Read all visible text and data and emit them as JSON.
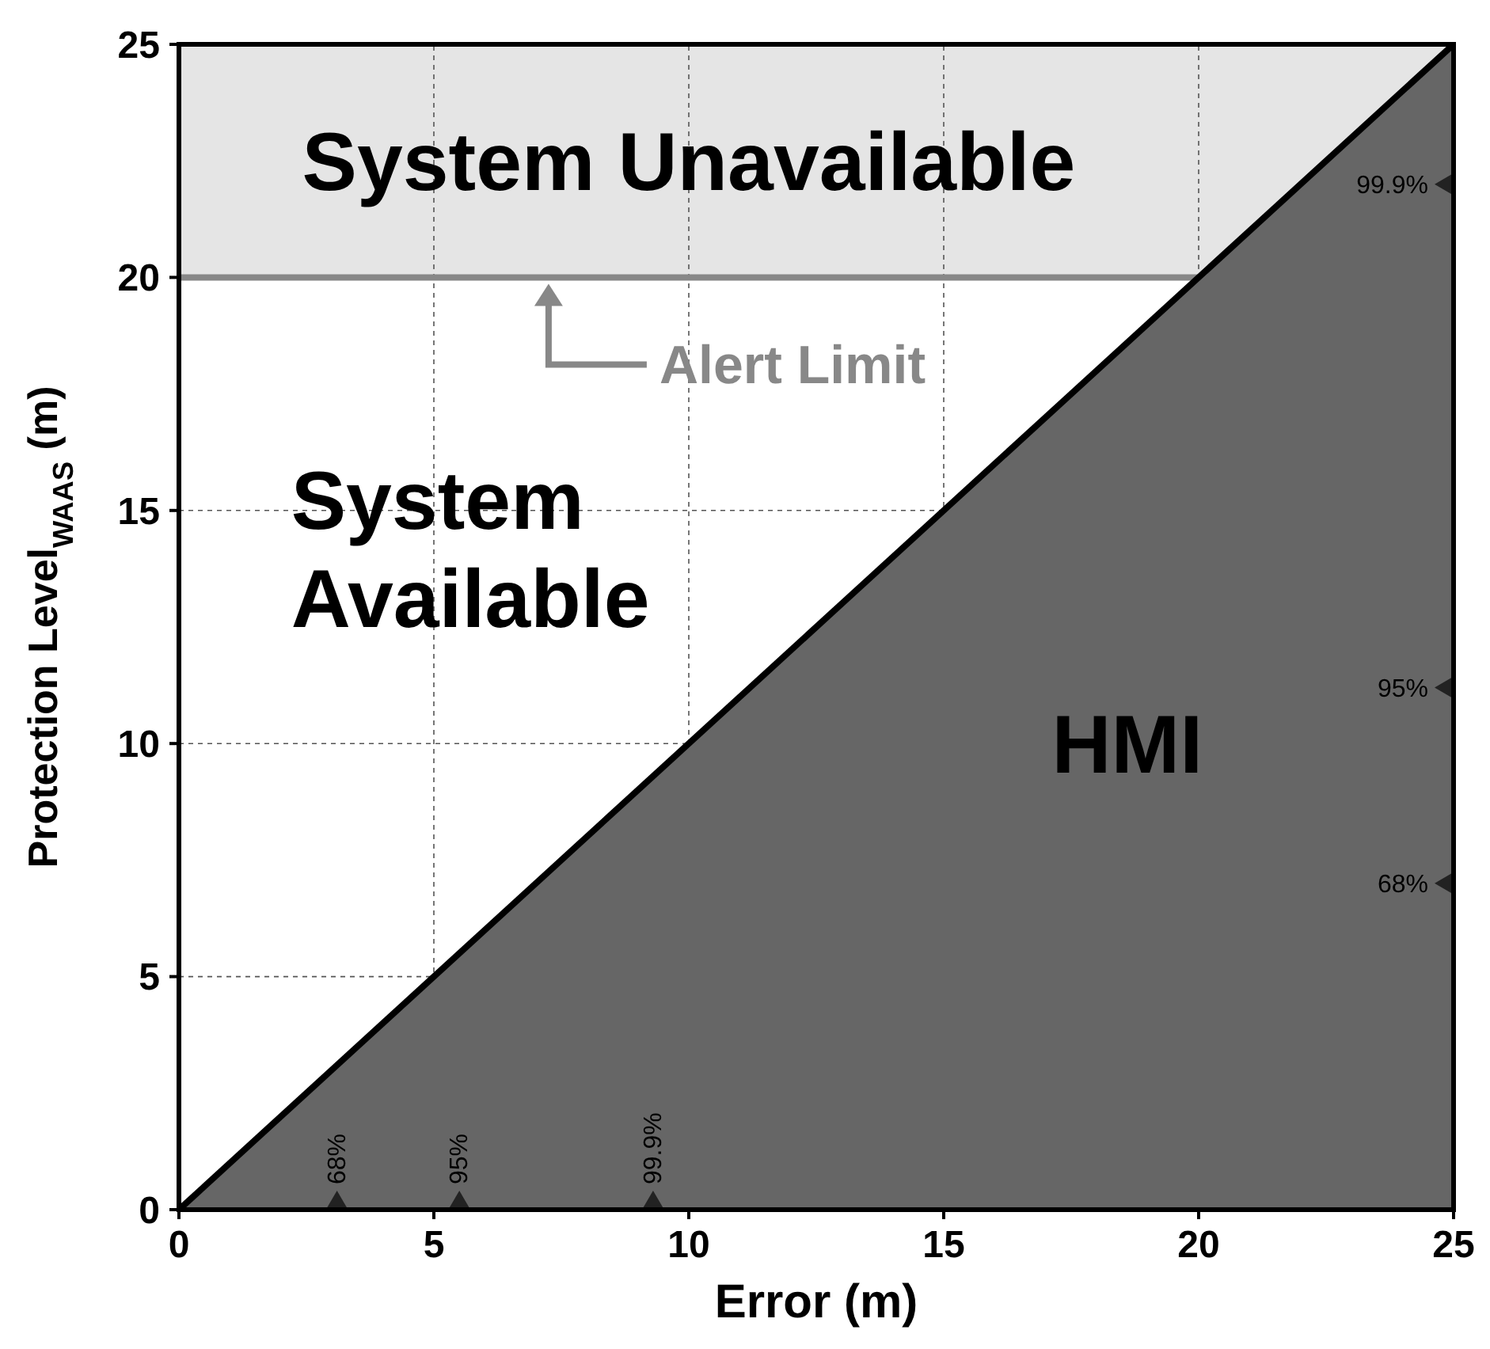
{
  "chart_data": {
    "type": "area",
    "xlabel": "Error (m)",
    "ylabel": "Protection Level$_{WAAS}$ (m)",
    "xlim": [
      0,
      25
    ],
    "ylim": [
      0,
      25
    ],
    "xticks": [
      0,
      5,
      10,
      15,
      20,
      25
    ],
    "yticks": [
      0,
      5,
      10,
      15,
      20,
      25
    ],
    "grid": true,
    "series": [
      {
        "color": "#666666",
        "x": [
          0,
          25
        ],
        "values": [
          0,
          25
        ]
      }
    ],
    "bands": [
      {
        "axis": "y",
        "from": 20,
        "to": 25,
        "label": "System Unavailable",
        "color": "#e5e5e5"
      }
    ],
    "ref_lines": [
      {
        "axis": "y",
        "value": 20,
        "label": "Alert Limit",
        "color": "#888888"
      }
    ],
    "annotations": [
      "System Available",
      "HMI",
      {
        "text": "68%",
        "x": 3.1,
        "y": 0
      },
      {
        "text": "95%",
        "x": 5.5,
        "y": 0
      },
      {
        "text": "99.9%",
        "x": 9.3,
        "y": 0
      },
      {
        "text": "68%",
        "x": 25,
        "y": 7
      },
      {
        "text": "95%",
        "x": 25,
        "y": 11.2
      },
      {
        "text": "99.9%",
        "x": 25,
        "y": 22
      }
    ]
  }
}
